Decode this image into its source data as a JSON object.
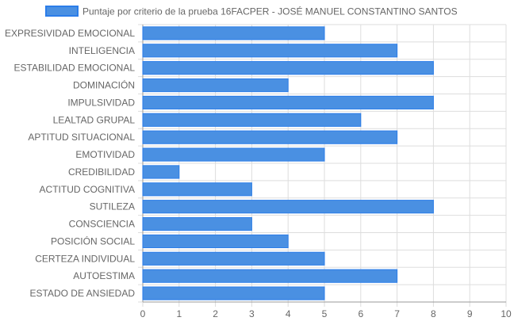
{
  "chart_data": {
    "type": "bar",
    "orientation": "horizontal",
    "categories": [
      "EXPRESIVIDAD EMOCIONAL",
      "INTELIGENCIA",
      "ESTABILIDAD EMOCIONAL",
      "DOMINACIÓN",
      "IMPULSIVIDAD",
      "LEALTAD GRUPAL",
      "APTITUD SITUACIONAL",
      "EMOTIVIDAD",
      "CREDIBILIDAD",
      "ACTITUD COGNITIVA",
      "SUTILEZA",
      "CONSCIENCIA",
      "POSICIÓN SOCIAL",
      "CERTEZA INDIVIDUAL",
      "AUTOESTIMA",
      "ESTADO DE ANSIEDAD"
    ],
    "series": [
      {
        "name": "Puntaje por criterio de la prueba 16FACPER - JOSÉ MANUEL CONSTANTINO SANTOS",
        "values": [
          5,
          7,
          8,
          4,
          8,
          6,
          7,
          5,
          1,
          3,
          8,
          3,
          4,
          5,
          7,
          5
        ]
      }
    ],
    "xlim": [
      0,
      10
    ],
    "x_ticks": [
      "0",
      "1",
      "2",
      "3",
      "4",
      "5",
      "6",
      "7",
      "8",
      "9",
      "10"
    ],
    "grid": true,
    "legend_position": "top",
    "colors": {
      "bar_fill": "#4a90e2",
      "bar_border": "#2b7de9",
      "grid": "#dddddd",
      "axis": "#999999",
      "text": "#666666"
    }
  }
}
